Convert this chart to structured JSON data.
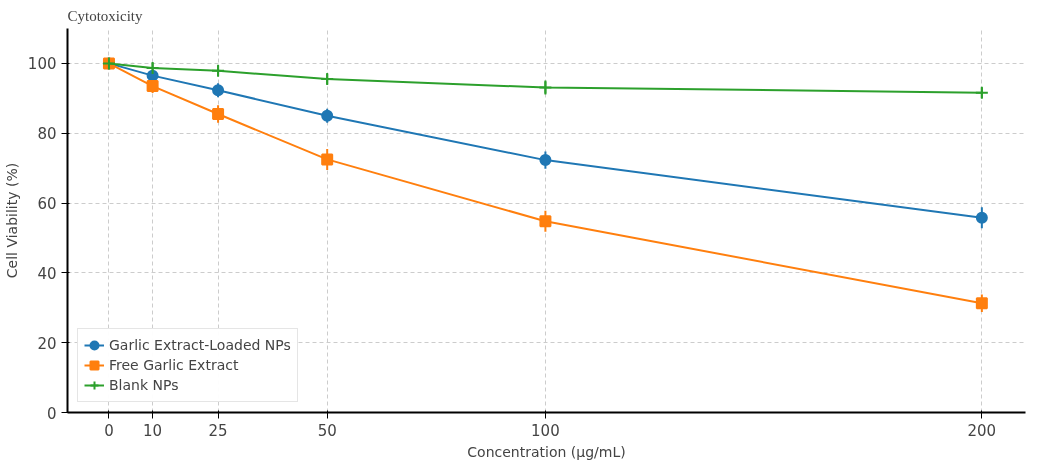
{
  "chart_data": {
    "type": "line",
    "title": "Cytotoxicity",
    "xlabel": "Concentration (µg/mL)",
    "ylabel": "Cell Viability (%)",
    "x": [
      0,
      10,
      25,
      50,
      100,
      200
    ],
    "xlim": [
      -9.5,
      210
    ],
    "xticks": [
      0,
      10,
      25,
      50,
      100,
      200
    ],
    "ylim": [
      0,
      110
    ],
    "yticks": [
      0,
      20,
      40,
      60,
      80,
      100
    ],
    "grid": true,
    "legend": "bottom left",
    "series": [
      {
        "name": "Garlic Extract-Loaded NPs",
        "color": "#1f77b4",
        "marker": "circle",
        "values": [
          100,
          96.5,
          92.3,
          85,
          72.3,
          55.8
        ],
        "errors": [
          null,
          1.5,
          2,
          2,
          2.5,
          3
        ]
      },
      {
        "name": "Free Garlic Extract",
        "color": "#ff7f0e",
        "marker": "square",
        "values": [
          100,
          93.5,
          85.5,
          72.5,
          54.8,
          31.3
        ],
        "errors": [
          null,
          2,
          2.5,
          3,
          3,
          2.5
        ]
      },
      {
        "name": "Blank NPs",
        "color": "#2ca02c",
        "marker": "cross",
        "values": [
          100,
          98.7,
          97.9,
          95.5,
          93.1,
          91.6
        ],
        "errors": [
          null,
          1.5,
          1.5,
          1.5,
          2,
          1.5
        ]
      }
    ]
  }
}
